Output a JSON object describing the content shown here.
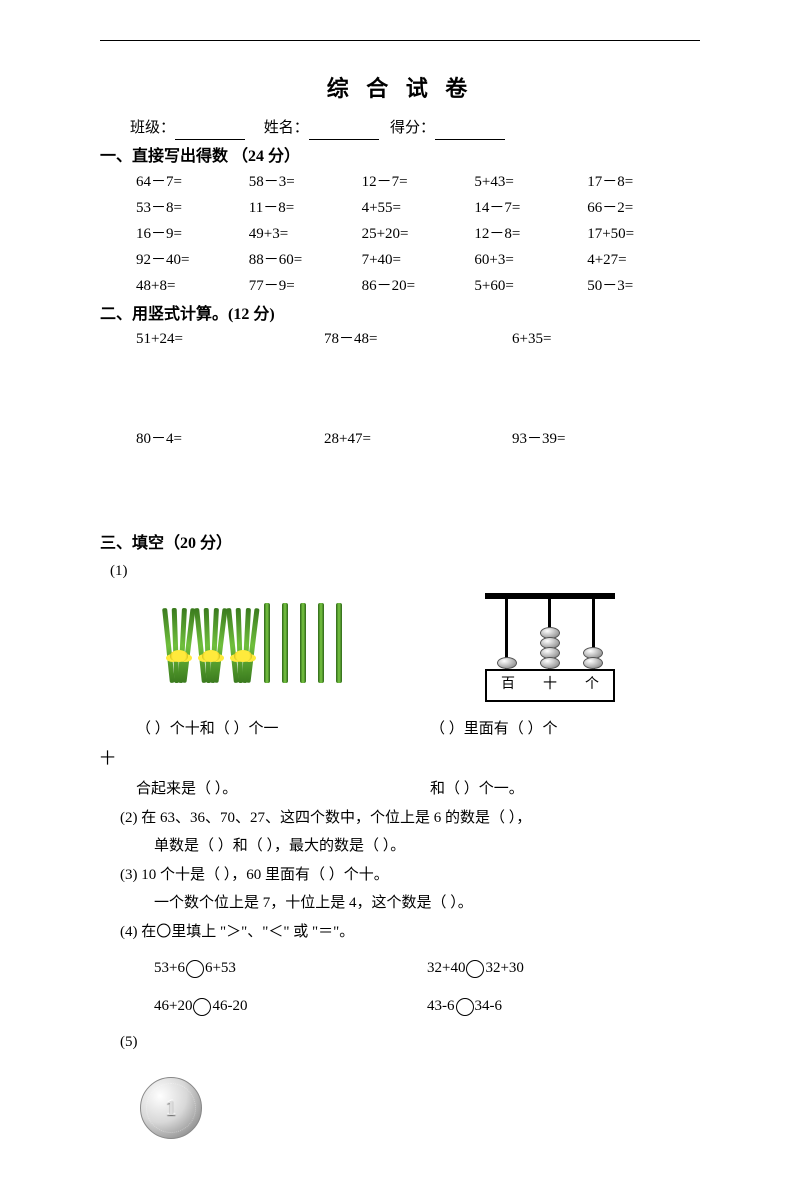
{
  "title": "综 合 试 卷",
  "meta": {
    "class_label": "班级：",
    "name_label": "姓名：",
    "score_label": "得分："
  },
  "s1": {
    "head": "一、直接写出得数 （24 分）",
    "items": [
      "64－7=",
      "58－3=",
      "12－7=",
      "5+43=",
      "17－8=",
      "53－8=",
      "11－8=",
      "4+55=",
      "14－7=",
      "66－2=",
      "16－9=",
      "49+3=",
      "25+20=",
      "12－8=",
      "17+50=",
      "92－40=",
      "88－60=",
      "7+40=",
      "60+3=",
      "4+27=",
      "48+8=",
      "77－9=",
      "86－20=",
      "5+60=",
      "50－3="
    ]
  },
  "s2": {
    "head": "二、用竖式计算。(12 分)",
    "row1": [
      "51+24=",
      "78－48=",
      "6+35="
    ],
    "row2": [
      "80－4=",
      "28+47=",
      "93－39="
    ]
  },
  "s3": {
    "head": "三、填空（20 分）",
    "q1num": "(1)",
    "q1_left_a": "（     ）个十和（    ）个一",
    "q1_left_b": "合起来是（    ）。",
    "q1_right_a": "（     ）里面有（    ）个",
    "q1_right_a2": "十",
    "q1_right_b": "和（    ）个一。",
    "q2a": "(2)  在 63、36、70、27、这四个数中，个位上是 6 的数是（    ），",
    "q2b": "单数是（    ）和（    ），最大的数是（    ）。",
    "q3a": "(3)  10 个十是（    ），60 里面有（    ）个十。",
    "q3b": "一个数个位上是 7，十位上是 4，这个数是（    ）。",
    "q4": "(4)  在〇里填上 \"＞\"、\"＜\" 或 \"＝\"。",
    "c1": "53+6〇6+53",
    "c2": "32+40〇32+30",
    "c3": "46+20〇46-20",
    "c4": "43-6〇34-6",
    "q5": "(5)"
  },
  "abacus": {
    "labels": [
      "百",
      "十",
      "个"
    ],
    "beads": [
      1,
      4,
      2
    ]
  },
  "sticks": {
    "bundles": 3,
    "singles": 5
  },
  "coin_text": "1",
  "colors": {
    "stick_dark": "#2d6618",
    "stick_light": "#7ac943",
    "tie": "#ffea3c"
  }
}
